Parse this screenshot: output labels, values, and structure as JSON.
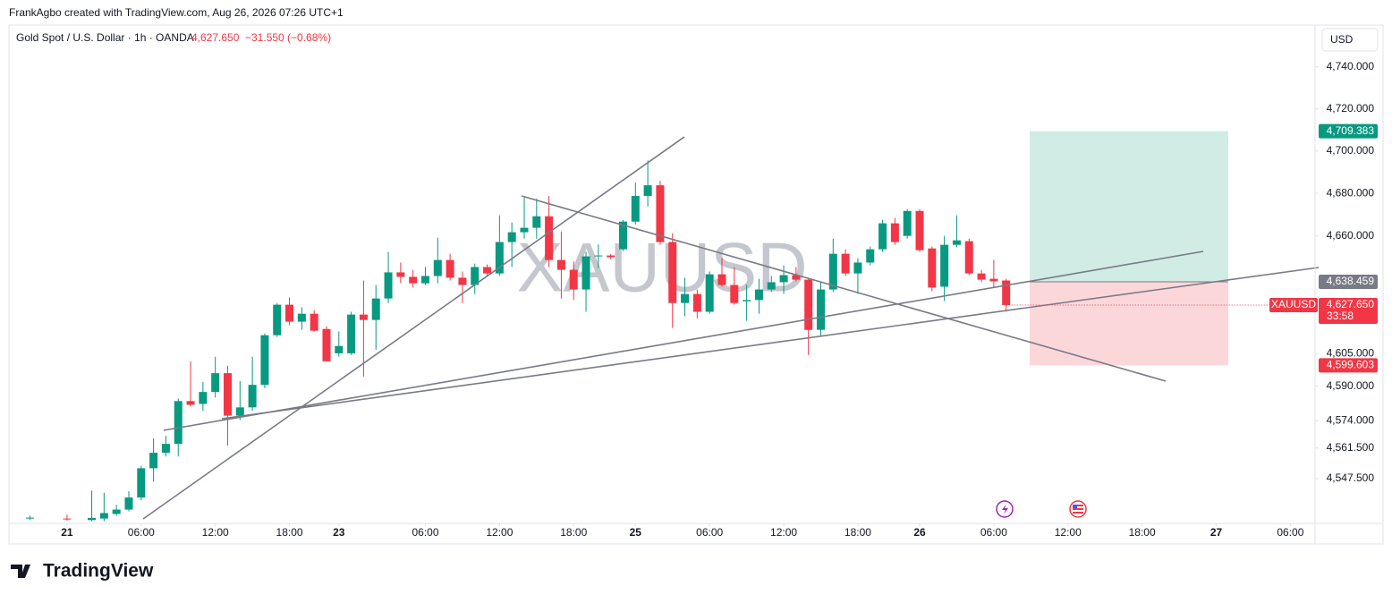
{
  "header": {
    "credit": "FrankAgbo created with TradingView.com, Aug 26, 2026 07:26 UTC+1"
  },
  "legend": {
    "symbol_info": "Gold Spot / U.S. Dollar · 1h · OANDA",
    "change": "−31.550 (−0.68%)"
  },
  "currency_button": "USD",
  "brand": "TradingView",
  "chart_data": {
    "type": "candlestick",
    "watermark": "XAUUSD",
    "log_scale": true,
    "grid": false,
    "up_color": "#089981",
    "down_color": "#f23645",
    "xlim": [
      -1.7,
      104
    ],
    "xticks": [
      {
        "value": 3,
        "label": "21"
      },
      {
        "value": 9,
        "label": "06:00"
      },
      {
        "value": 15,
        "label": "12:00"
      },
      {
        "value": 21,
        "label": "18:00"
      },
      {
        "value": 25,
        "label": "23"
      },
      {
        "value": 32,
        "label": "06:00"
      },
      {
        "value": 38,
        "label": "12:00"
      },
      {
        "value": 44,
        "label": "18:00"
      },
      {
        "value": 49,
        "label": "25"
      },
      {
        "value": 55,
        "label": "06:00"
      },
      {
        "value": 61,
        "label": "12:00"
      },
      {
        "value": 67,
        "label": "18:00"
      },
      {
        "value": 72,
        "label": "26"
      },
      {
        "value": 78,
        "label": "06:00"
      },
      {
        "value": 84,
        "label": "12:00"
      },
      {
        "value": 90,
        "label": "18:00"
      },
      {
        "value": 96,
        "label": "27"
      },
      {
        "value": 102,
        "label": "06:00"
      }
    ],
    "ylim": [
      4527,
      4760
    ],
    "yticks": [
      {
        "value": 4740,
        "label": "4,740.000"
      },
      {
        "value": 4720,
        "label": "4,720.000"
      },
      {
        "value": 4700,
        "label": "4,700.000"
      },
      {
        "value": 4680,
        "label": "4,680.000"
      },
      {
        "value": 4660,
        "label": "4,660.000"
      },
      {
        "value": 4605,
        "label": "4,605.000"
      },
      {
        "value": 4590,
        "label": "4,590.000"
      },
      {
        "value": 4574,
        "label": "4,574.000"
      },
      {
        "value": 4561.5,
        "label": "4,561.500"
      },
      {
        "value": 4547.5,
        "label": "4,547.500"
      }
    ],
    "open": [
      4529.2,
      null,
      null,
      4529.2,
      null,
      4528.5,
      4529.2,
      4531.3,
      4533.3,
      4538.8,
      4552.2,
      4559.3,
      4563.4,
      4583.1,
      4581.8,
      4587.3,
      4596,
      4576.4,
      4580.2,
      4590.6,
      4613.6,
      4627.8,
      4619.9,
      4623.6,
      4616.5,
      4605.2,
      4605.2,
      4623.2,
      4620.7,
      4630.7,
      4642.9,
      4640.8,
      4637.8,
      4641.2,
      4648.7,
      4640.4,
      4637,
      4645.4,
      4642.4,
      4657.1,
      4661.7,
      4663.8,
      4669.2,
      4648.7,
      4644.1,
      4634.9,
      4650.4,
      4650.8,
      4653.7,
      4666.7,
      4678.8,
      4683.8,
      4657.1,
      4628.6,
      4632.8,
      4624.5,
      4642,
      4637,
      4629.4,
      4630,
      4634.9,
      4638.3,
      4641.6,
      4639.5,
      4616.1,
      4634.9,
      4651.6,
      4642.4,
      4647.5,
      4653.7,
      4665.9,
      4660,
      4671.7,
      4654.1,
      4636.2,
      4655.8,
      4657.5,
      4642.4,
      4639.9,
      4639.1
    ],
    "high": [
      4530.5,
      null,
      null,
      4531,
      null,
      4542,
      4541,
      4535.4,
      4541.7,
      4553.4,
      4566,
      4567.2,
      4584.3,
      4601.5,
      4591.9,
      4603.6,
      4599.4,
      4592.3,
      4603.6,
      4614.4,
      4628.6,
      4631.2,
      4626.6,
      4625.3,
      4617.8,
      4615.3,
      4624.5,
      4639.1,
      4637,
      4652.5,
      4647.5,
      4644.1,
      4645.4,
      4659.2,
      4651.6,
      4643.3,
      4647,
      4646.6,
      4669.6,
      4666.3,
      4678,
      4677.6,
      4678.8,
      4662.1,
      4648,
      4652.5,
      4656,
      4651.5,
      4667.5,
      4685.1,
      4695.5,
      4685.9,
      4661.3,
      4640.4,
      4634.9,
      4643.3,
      4649.6,
      4645.4,
      4637,
      4639.9,
      4641.2,
      4646.2,
      4645.4,
      4640.4,
      4638.3,
      4658.7,
      4653.7,
      4649.6,
      4655,
      4667.5,
      4668.4,
      4672.5,
      4672.5,
      4655,
      4660,
      4669.6,
      4658.7,
      4644.1,
      4648.7,
      4639.9
    ],
    "low": [
      4528.5,
      null,
      null,
      4528.3,
      null,
      4528,
      4528,
      4530.5,
      4532.5,
      4537.5,
      4546,
      4557.6,
      4557.6,
      4580.6,
      4578.5,
      4584.8,
      4562.6,
      4574.3,
      4578.5,
      4589,
      4612.8,
      4618.2,
      4616.1,
      4615.3,
      4601.5,
      4603.6,
      4604.4,
      4594.4,
      4606.9,
      4628.6,
      4637.8,
      4635.8,
      4637,
      4637.8,
      4639.1,
      4628.6,
      4632.8,
      4641.2,
      4641.2,
      4645.4,
      4658.7,
      4658.7,
      4645.4,
      4630.7,
      4630,
      4624.5,
      4645,
      4649,
      4652.9,
      4665.4,
      4673.8,
      4655.8,
      4617,
      4622.4,
      4621.5,
      4623.6,
      4636.2,
      4627.8,
      4620.3,
      4623.6,
      4633.7,
      4632.8,
      4638.7,
      4604.4,
      4612.8,
      4633.7,
      4641.2,
      4632.8,
      4646.2,
      4652.5,
      4655.8,
      4658.7,
      4652.5,
      4634.1,
      4629.5,
      4654.6,
      4641.6,
      4638.3,
      4635.8,
      4624.5
    ],
    "close": [
      4529.6,
      null,
      null,
      4529.0,
      null,
      4529.5,
      4531.7,
      4533.3,
      4538.8,
      4552.2,
      4559.3,
      4563.4,
      4583.1,
      4581.4,
      4587.3,
      4596,
      4576.4,
      4580.2,
      4590.6,
      4613.6,
      4627.8,
      4619.9,
      4623.6,
      4615.7,
      4601.5,
      4608.6,
      4623.2,
      4620.7,
      4630.7,
      4642.9,
      4640.8,
      4637.8,
      4641.2,
      4648.7,
      4640.4,
      4637,
      4645.4,
      4642.4,
      4657.1,
      4661.7,
      4663.8,
      4669.2,
      4648.7,
      4644.1,
      4634.9,
      4650.4,
      4650.8,
      4650,
      4666.7,
      4678.8,
      4683.8,
      4657.1,
      4628.6,
      4632.8,
      4624.5,
      4642,
      4637,
      4628.6,
      4630,
      4634.9,
      4638.3,
      4641.6,
      4639.5,
      4616.1,
      4634.9,
      4651.6,
      4642.4,
      4647.5,
      4653.7,
      4665.9,
      4657.1,
      4671.7,
      4653.3,
      4635.8,
      4655.8,
      4657.9,
      4642.4,
      4639.5,
      4638.7,
      4627.65
    ],
    "last_price": {
      "value": 4627.65,
      "label": "4,627.650",
      "symbol": "XAUUSD",
      "countdown": "33:58"
    },
    "position": {
      "target": {
        "value": 4709.383,
        "label": "4,709.383"
      },
      "entry": {
        "value": 4638.459,
        "label": "4,638.459"
      },
      "stop": {
        "value": 4599.603,
        "label": "4,599.603"
      }
    }
  }
}
